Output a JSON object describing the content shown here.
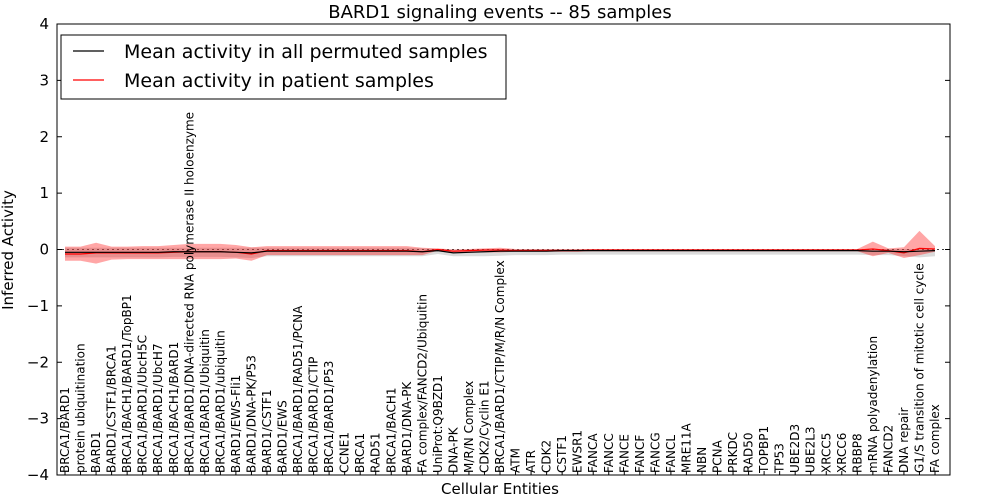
{
  "chart_data": {
    "type": "line",
    "title": "BARD1 signaling events -- 85 samples",
    "xlabel": "Cellular Entities",
    "ylabel": "Inferred Activity",
    "ylim": [
      -4,
      4
    ],
    "yticks": [
      "4",
      "3",
      "2",
      "1",
      "0",
      "−1",
      "−2",
      "−3",
      "−4"
    ],
    "legend": {
      "placement": "top-left",
      "entries": [
        {
          "label": "Mean activity in all permuted samples",
          "color": "#000000"
        },
        {
          "label": "Mean activity in patient samples",
          "color": "#ff0000"
        }
      ]
    },
    "categories": [
      "BRCA1/BARD1",
      "protein ubiquitination",
      "BARD1",
      "BARD1/CSTF1/BRCA1",
      "BRCA1/BACH1/BARD1/TopBP1",
      "BRCA1/BARD1/UbcH5C",
      "BRCA1/BARD1/UbcH7",
      "BRCA1/BACH1/BARD1",
      "BRCA1/BARD1/DNA-directed RNA polymerase II holoenzyme",
      "BRCA1/BARD1/Ubiquitin",
      "BRCA1/BARD1/ubiquitin",
      "BARD1/EWS-Fli1",
      "BARD1/DNA-PK/P53",
      "BARD1/CSTF1",
      "BARD1/EWS",
      "BRCA1/BARD1/RAD51/PCNA",
      "BRCA1/BARD1/CTIP",
      "BRCA1/BARD1/P53",
      "CCNE1",
      "BRCA1",
      "RAD51",
      "BRCA1/BACH1",
      "BARD1/DNA-PK",
      "FA complex/FANCD2/Ubiquitin",
      "UniProt:Q9BZD1",
      "DNA-PK",
      "M/R/N Complex",
      "CDK2/Cyclin E1",
      "BRCA1/BARD1/CTIP/M/R/N Complex",
      "ATM",
      "ATR",
      "CDK2",
      "CSTF1",
      "EWSR1",
      "FANCA",
      "FANCC",
      "FANCE",
      "FANCF",
      "FANCG",
      "FANCL",
      "MRE11A",
      "NBN",
      "PCNA",
      "PRKDC",
      "RAD50",
      "TOPBP1",
      "TP53",
      "UBE2D3",
      "UBE2L3",
      "XRCC5",
      "XRCC6",
      "RBBP8",
      "mRNA polyadenylation",
      "FANCD2",
      "DNA repair",
      "G1/S transition of mitotic cell cycle",
      "FA complex"
    ],
    "series": [
      {
        "name": "Mean activity in patient samples",
        "color": "#ff0000",
        "values": [
          -0.08,
          -0.08,
          -0.06,
          -0.06,
          -0.06,
          -0.06,
          -0.06,
          -0.05,
          -0.04,
          -0.04,
          -0.04,
          -0.05,
          -0.08,
          -0.02,
          -0.02,
          -0.02,
          -0.02,
          -0.02,
          -0.02,
          -0.02,
          -0.02,
          -0.02,
          -0.02,
          -0.04,
          0.0,
          -0.03,
          -0.02,
          -0.01,
          -0.01,
          -0.02,
          -0.02,
          -0.02,
          -0.02,
          -0.02,
          -0.01,
          -0.01,
          -0.01,
          -0.01,
          -0.01,
          -0.01,
          -0.01,
          -0.01,
          -0.01,
          -0.01,
          -0.01,
          -0.01,
          -0.01,
          -0.01,
          -0.01,
          -0.01,
          -0.01,
          -0.01,
          0.01,
          -0.02,
          -0.06,
          0.02,
          0.01
        ],
        "upper": [
          0.05,
          0.05,
          0.12,
          0.05,
          0.05,
          0.06,
          0.06,
          0.08,
          0.1,
          0.1,
          0.1,
          0.08,
          0.04,
          0.06,
          0.06,
          0.06,
          0.06,
          0.06,
          0.06,
          0.06,
          0.06,
          0.06,
          0.06,
          0.03,
          0.02,
          0.0,
          0.01,
          0.02,
          0.03,
          0.01,
          0.01,
          0.01,
          0.01,
          0.01,
          0.01,
          0.01,
          0.01,
          0.01,
          0.01,
          0.01,
          0.01,
          0.01,
          0.01,
          0.01,
          0.01,
          0.01,
          0.01,
          0.01,
          0.01,
          0.01,
          0.01,
          0.01,
          0.14,
          0.02,
          0.04,
          0.33,
          0.06
        ],
        "lower": [
          -0.2,
          -0.2,
          -0.25,
          -0.18,
          -0.17,
          -0.17,
          -0.17,
          -0.17,
          -0.17,
          -0.17,
          -0.17,
          -0.16,
          -0.2,
          -0.1,
          -0.1,
          -0.1,
          -0.1,
          -0.1,
          -0.1,
          -0.1,
          -0.1,
          -0.1,
          -0.1,
          -0.1,
          -0.02,
          -0.06,
          -0.05,
          -0.05,
          -0.05,
          -0.04,
          -0.04,
          -0.04,
          -0.04,
          -0.04,
          -0.03,
          -0.03,
          -0.03,
          -0.03,
          -0.03,
          -0.03,
          -0.03,
          -0.03,
          -0.03,
          -0.03,
          -0.03,
          -0.03,
          -0.03,
          -0.03,
          -0.03,
          -0.03,
          -0.03,
          -0.03,
          -0.12,
          -0.06,
          -0.15,
          -0.1,
          -0.04
        ]
      },
      {
        "name": "Mean activity in all permuted samples",
        "color": "#000000",
        "values": [
          -0.05,
          -0.05,
          -0.05,
          -0.05,
          -0.05,
          -0.05,
          -0.05,
          -0.04,
          -0.04,
          -0.04,
          -0.04,
          -0.05,
          -0.06,
          -0.03,
          -0.03,
          -0.03,
          -0.03,
          -0.03,
          -0.03,
          -0.03,
          -0.03,
          -0.03,
          -0.03,
          -0.04,
          -0.02,
          -0.06,
          -0.05,
          -0.04,
          -0.03,
          -0.03,
          -0.03,
          -0.03,
          -0.02,
          -0.02,
          -0.02,
          -0.02,
          -0.02,
          -0.02,
          -0.02,
          -0.02,
          -0.02,
          -0.02,
          -0.02,
          -0.02,
          -0.02,
          -0.02,
          -0.02,
          -0.02,
          -0.02,
          -0.02,
          -0.02,
          -0.02,
          -0.03,
          -0.03,
          -0.04,
          -0.03,
          -0.02
        ],
        "upper": [
          0.03,
          0.03,
          0.03,
          0.03,
          0.03,
          0.03,
          0.03,
          0.03,
          0.03,
          0.03,
          0.03,
          0.03,
          0.03,
          0.03,
          0.03,
          0.03,
          0.03,
          0.03,
          0.03,
          0.03,
          0.03,
          0.03,
          0.03,
          0.02,
          0.01,
          0.0,
          0.0,
          0.01,
          0.01,
          0.01,
          0.01,
          0.01,
          0.01,
          0.01,
          0.01,
          0.01,
          0.01,
          0.01,
          0.01,
          0.01,
          0.01,
          0.01,
          0.01,
          0.01,
          0.01,
          0.01,
          0.01,
          0.01,
          0.01,
          0.01,
          0.01,
          0.01,
          0.01,
          0.01,
          0.01,
          0.01,
          0.01
        ],
        "lower": [
          -0.14,
          -0.14,
          -0.14,
          -0.14,
          -0.14,
          -0.14,
          -0.14,
          -0.13,
          -0.13,
          -0.13,
          -0.13,
          -0.14,
          -0.15,
          -0.12,
          -0.12,
          -0.12,
          -0.12,
          -0.12,
          -0.12,
          -0.12,
          -0.12,
          -0.12,
          -0.12,
          -0.12,
          -0.08,
          -0.12,
          -0.12,
          -0.12,
          -0.11,
          -0.1,
          -0.1,
          -0.1,
          -0.09,
          -0.09,
          -0.09,
          -0.09,
          -0.09,
          -0.09,
          -0.09,
          -0.09,
          -0.09,
          -0.09,
          -0.09,
          -0.09,
          -0.09,
          -0.09,
          -0.09,
          -0.09,
          -0.09,
          -0.09,
          -0.09,
          -0.09,
          -0.1,
          -0.1,
          -0.12,
          -0.14,
          -0.12
        ]
      }
    ]
  }
}
